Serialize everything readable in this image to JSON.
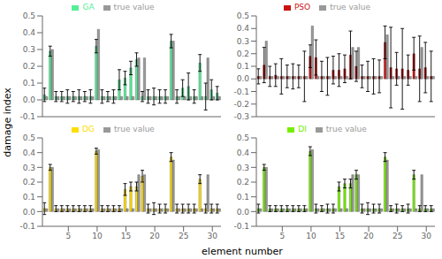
{
  "chart_data": [
    {
      "type": "bar",
      "ylabel": "damage index",
      "legend": "top",
      "grid": false,
      "tick_labels": "y",
      "x": [
        1,
        2,
        3,
        4,
        5,
        6,
        7,
        8,
        9,
        10,
        11,
        12,
        13,
        14,
        15,
        16,
        17,
        18,
        19,
        20,
        21,
        22,
        23,
        24,
        25,
        26,
        27,
        28,
        29,
        30,
        31
      ],
      "xlim": [
        0.5,
        31.5
      ],
      "xticks": [
        5,
        10,
        15,
        20,
        25,
        30
      ],
      "ylim": [
        -0.1,
        0.5
      ],
      "yticks": [
        -0.1,
        {
          "value": 0,
          "label": "0.0"
        },
        0.1,
        0.2,
        0.3,
        0.4,
        0.5
      ],
      "series": [
        {
          "name": "GA",
          "color": "#55ee99",
          "values": [
            0.03,
            0.29,
            0.02,
            0.02,
            0.02,
            0.02,
            0.02,
            0.02,
            0.02,
            0.32,
            0.02,
            0.02,
            0.02,
            0.12,
            0.13,
            0.19,
            0.24,
            0.02,
            0.02,
            0.02,
            0.02,
            0.02,
            0.35,
            0.02,
            0.07,
            0.08,
            0.02,
            0.22,
            0.02,
            0.06,
            0.04
          ],
          "errors": [
            0.04,
            0.03,
            0.03,
            0.03,
            0.04,
            0.03,
            0.04,
            0.03,
            0.04,
            0.04,
            0.04,
            0.03,
            0.04,
            0.06,
            0.04,
            0.04,
            0.04,
            0.03,
            0.04,
            0.05,
            0.04,
            0.04,
            0.04,
            0.04,
            0.05,
            0.08,
            0.04,
            0.05,
            0.08,
            0.06,
            0.04
          ]
        },
        {
          "name": "true value",
          "color": "#999999",
          "values": [
            0.02,
            0.3,
            0.02,
            0.02,
            0.02,
            0.02,
            0.02,
            0.02,
            0.02,
            0.42,
            0.02,
            0.02,
            0.02,
            0.02,
            0.02,
            0.02,
            0.25,
            0.25,
            0.02,
            0.02,
            0.02,
            0.02,
            0.35,
            0.02,
            0.02,
            0.02,
            0.02,
            0.02,
            0.25,
            0.02,
            0.02
          ]
        }
      ]
    },
    {
      "type": "bar",
      "legend": "top",
      "grid": false,
      "tick_labels": "y",
      "x": [
        1,
        2,
        3,
        4,
        5,
        6,
        7,
        8,
        9,
        10,
        11,
        12,
        13,
        14,
        15,
        16,
        17,
        18,
        19,
        20,
        21,
        22,
        23,
        24,
        25,
        26,
        27,
        28,
        29,
        30,
        31
      ],
      "xlim": [
        0.5,
        31.5
      ],
      "xticks": [
        5,
        10,
        15,
        20,
        25,
        30
      ],
      "ylim": [
        -0.3,
        0.5
      ],
      "yticks": [
        -0.3,
        -0.2,
        -0.1,
        {
          "value": 0,
          "label": "0.0"
        },
        0.1,
        0.2,
        0.3,
        0.4,
        0.5
      ],
      "series": [
        {
          "name": "PSO",
          "color": "#cc1111",
          "values": [
            0.02,
            0.11,
            0.02,
            0.03,
            0.02,
            0.02,
            0.02,
            0.02,
            0.02,
            0.18,
            0.17,
            0.02,
            0.02,
            0.07,
            0.07,
            0.08,
            0.19,
            0.1,
            0.02,
            0.02,
            0.02,
            0.02,
            0.29,
            0.09,
            0.08,
            0.08,
            0.07,
            0.2,
            0.08,
            0.09,
            0.02
          ],
          "errors": [
            0.06,
            0.14,
            0.08,
            0.09,
            0.14,
            0.09,
            0.1,
            0.09,
            0.2,
            0.09,
            0.14,
            0.12,
            0.15,
            0.11,
            0.13,
            0.11,
            0.19,
            0.12,
            0.09,
            0.12,
            0.14,
            0.13,
            0.13,
            0.32,
            0.13,
            0.32,
            0.12,
            0.13,
            0.26,
            0.2,
            0.2
          ]
        },
        {
          "name": "true value",
          "color": "#999999",
          "values": [
            0.02,
            0.3,
            0.02,
            0.02,
            0.02,
            0.02,
            0.02,
            0.02,
            0.02,
            0.42,
            0.02,
            0.02,
            0.02,
            0.02,
            0.02,
            0.02,
            0.25,
            0.25,
            0.02,
            0.02,
            0.02,
            0.02,
            0.35,
            0.02,
            0.02,
            0.02,
            0.02,
            0.02,
            0.25,
            0.02,
            0.02
          ]
        }
      ]
    },
    {
      "type": "bar",
      "legend": "top",
      "grid": false,
      "x": [
        1,
        2,
        3,
        4,
        5,
        6,
        7,
        8,
        9,
        10,
        11,
        12,
        13,
        14,
        15,
        16,
        17,
        18,
        19,
        20,
        21,
        22,
        23,
        24,
        25,
        26,
        27,
        28,
        29,
        30,
        31
      ],
      "xlim": [
        0.5,
        31.5
      ],
      "xticks": [
        5,
        10,
        15,
        20,
        25,
        30
      ],
      "ylim": [
        -0.1,
        0.5
      ],
      "yticks": [
        -0.1,
        {
          "value": 0,
          "label": "0.0"
        },
        0.1,
        0.2,
        0.3,
        0.4,
        0.5
      ],
      "series": [
        {
          "name": "DG",
          "color": "#ffdd00",
          "values": [
            0.02,
            0.3,
            0.02,
            0.02,
            0.02,
            0.02,
            0.02,
            0.02,
            0.02,
            0.41,
            0.02,
            0.02,
            0.02,
            0.02,
            0.15,
            0.17,
            0.17,
            0.24,
            0.02,
            0.02,
            0.02,
            0.02,
            0.37,
            0.02,
            0.02,
            0.02,
            0.02,
            0.22,
            0.02,
            0.02,
            0.02
          ],
          "errors": [
            0.04,
            0.02,
            0.02,
            0.02,
            0.02,
            0.02,
            0.02,
            0.02,
            0.02,
            0.02,
            0.02,
            0.02,
            0.02,
            0.02,
            0.04,
            0.03,
            0.03,
            0.04,
            0.03,
            0.04,
            0.03,
            0.03,
            0.03,
            0.03,
            0.03,
            0.03,
            0.03,
            0.03,
            0.03,
            0.03,
            0.03
          ]
        },
        {
          "name": "true value",
          "color": "#999999",
          "values": [
            0.02,
            0.3,
            0.02,
            0.02,
            0.02,
            0.02,
            0.02,
            0.02,
            0.02,
            0.42,
            0.02,
            0.02,
            0.02,
            0.02,
            0.02,
            0.02,
            0.25,
            0.25,
            0.02,
            0.02,
            0.02,
            0.02,
            0.35,
            0.02,
            0.02,
            0.02,
            0.02,
            0.02,
            0.25,
            0.02,
            0.02
          ]
        }
      ]
    },
    {
      "type": "bar",
      "xlabel": "element number",
      "legend": "top",
      "grid": false,
      "x": [
        1,
        2,
        3,
        4,
        5,
        6,
        7,
        8,
        9,
        10,
        11,
        12,
        13,
        14,
        15,
        16,
        17,
        18,
        19,
        20,
        21,
        22,
        23,
        24,
        25,
        26,
        27,
        28,
        29,
        30,
        31
      ],
      "xlim": [
        0.5,
        31.5
      ],
      "xticks": [
        5,
        10,
        15,
        20,
        25,
        30
      ],
      "ylim": [
        -0.1,
        0.5
      ],
      "yticks": [
        -0.1,
        {
          "value": 0,
          "label": "0.0"
        },
        0.1,
        0.2,
        0.3,
        0.4,
        0.5
      ],
      "series": [
        {
          "name": "DI",
          "color": "#77ee00",
          "values": [
            0.02,
            0.3,
            0.02,
            0.02,
            0.02,
            0.02,
            0.02,
            0.02,
            0.02,
            0.41,
            0.02,
            0.02,
            0.02,
            0.02,
            0.17,
            0.19,
            0.19,
            0.25,
            0.02,
            0.02,
            0.02,
            0.02,
            0.37,
            0.02,
            0.02,
            0.02,
            0.02,
            0.25,
            0.02,
            0.02,
            0.02
          ],
          "errors": [
            0.03,
            0.02,
            0.02,
            0.02,
            0.02,
            0.02,
            0.02,
            0.02,
            0.02,
            0.03,
            0.03,
            0.02,
            0.03,
            0.03,
            0.03,
            0.03,
            0.03,
            0.03,
            0.03,
            0.04,
            0.03,
            0.03,
            0.03,
            0.02,
            0.03,
            0.02,
            0.03,
            0.03,
            0.02,
            0.02,
            0.02
          ]
        },
        {
          "name": "true value",
          "color": "#999999",
          "values": [
            0.02,
            0.3,
            0.02,
            0.02,
            0.02,
            0.02,
            0.02,
            0.02,
            0.02,
            0.42,
            0.02,
            0.02,
            0.02,
            0.02,
            0.02,
            0.02,
            0.25,
            0.25,
            0.02,
            0.02,
            0.02,
            0.02,
            0.35,
            0.02,
            0.02,
            0.02,
            0.02,
            0.02,
            0.25,
            0.02,
            0.02
          ]
        }
      ]
    }
  ]
}
